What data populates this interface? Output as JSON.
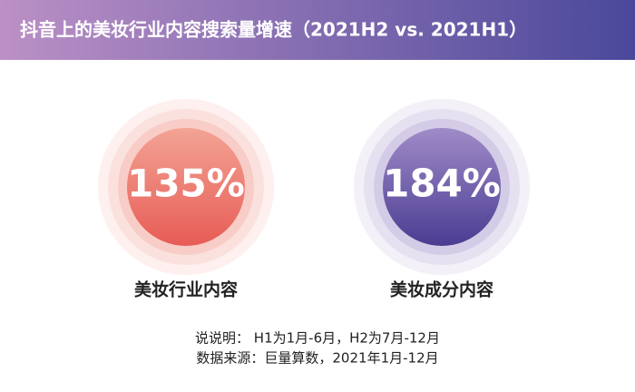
{
  "header": {
    "title": "抖音上的美妆行业内容搜索量增速（2021H2 vs. 2021H1）"
  },
  "stats": [
    {
      "value": "135%",
      "label": "美妆行业内容"
    },
    {
      "value": "184%",
      "label": "美妆成分内容"
    }
  ],
  "notes": [
    "说说明： H1为1月-6月，H2为7月-12月",
    "数据来源：巨量算数，2021年1月-12月"
  ]
}
